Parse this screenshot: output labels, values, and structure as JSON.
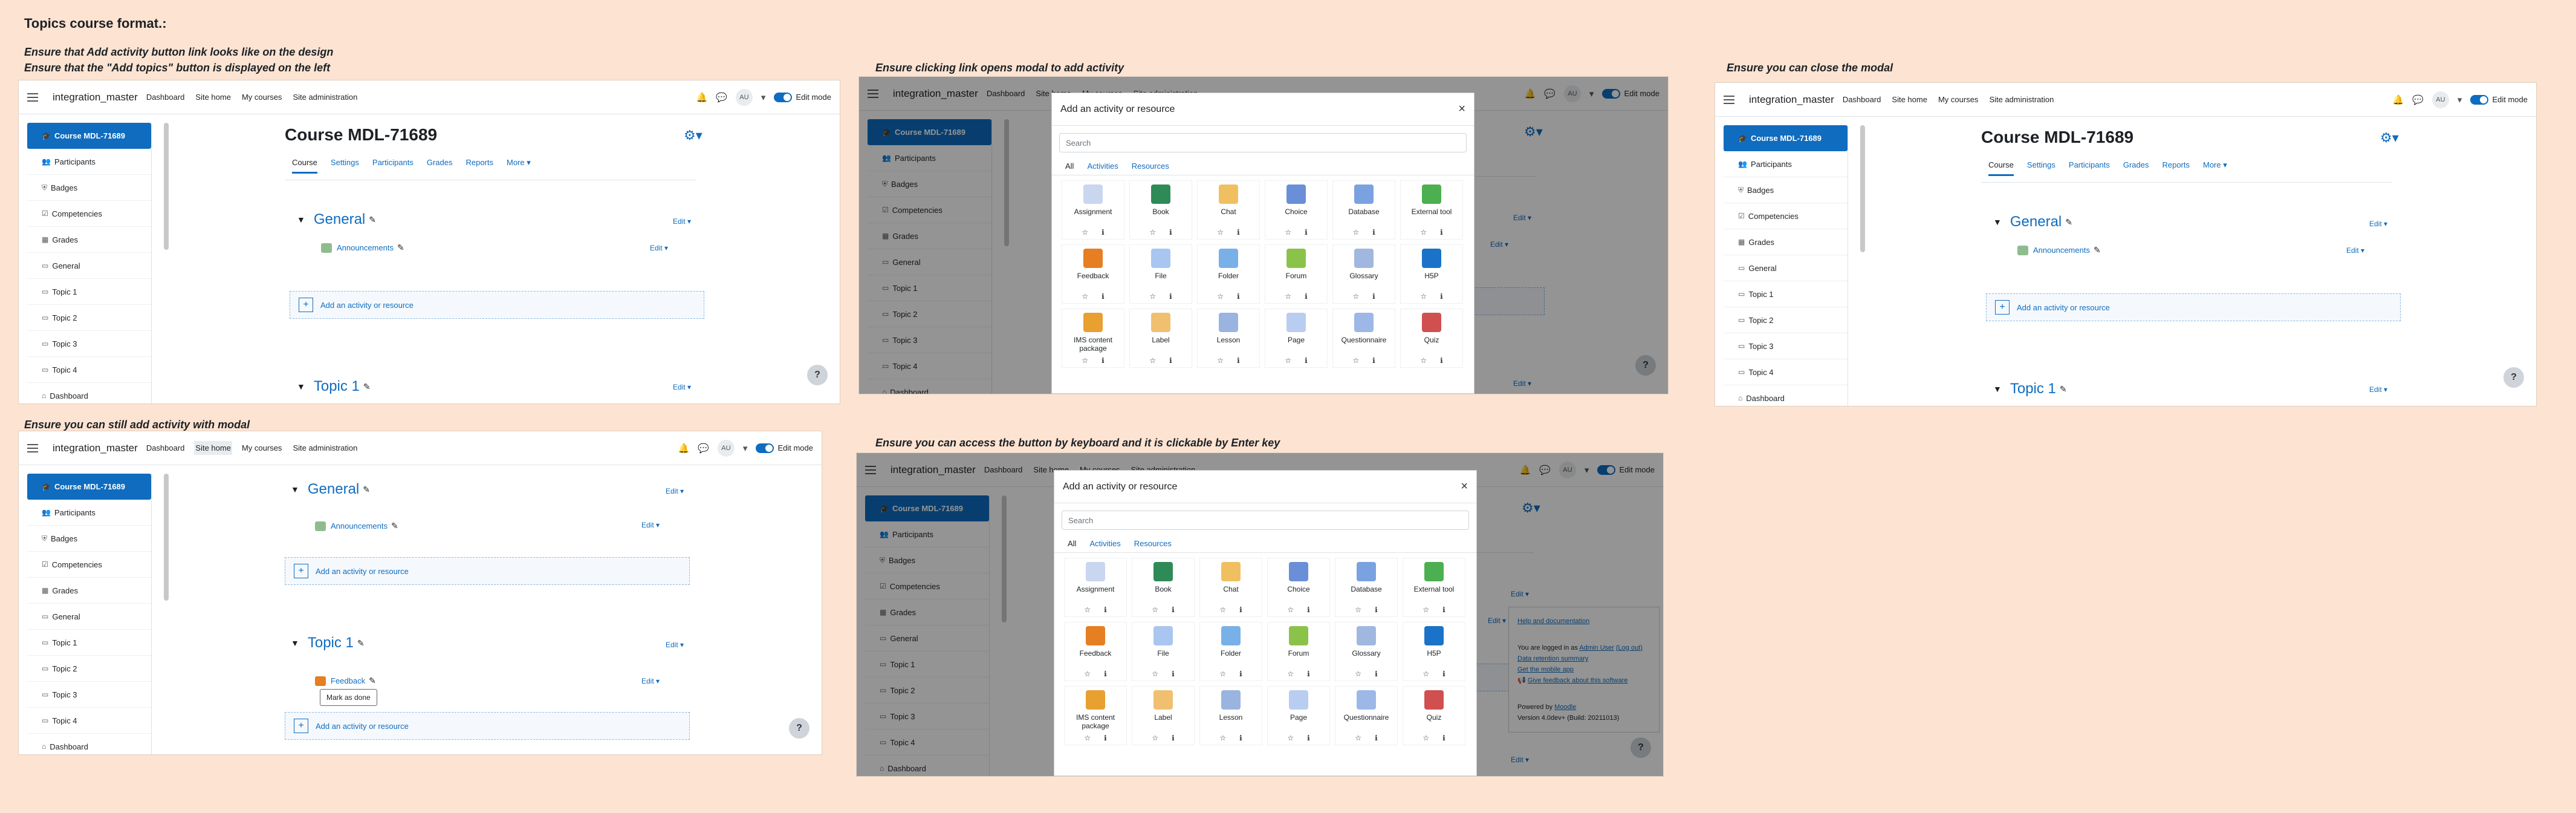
{
  "page_title": "Topics course format.:",
  "captions": {
    "c1a": "Ensure that Add activity button link looks like on the design",
    "c1b": "Ensure that the \"Add topics\" button is displayed on the left",
    "c2": "Ensure clicking link opens modal to add activity",
    "c3": "Ensure you can close the modal",
    "c4": "Ensure you can still add activity with modal",
    "c5": "Ensure you can access the button by keyboard and it is clickable by Enter key"
  },
  "nav": {
    "site": "integration_master",
    "links": [
      "Dashboard",
      "Site home",
      "My courses",
      "Site administration"
    ],
    "avatar": "AU",
    "edit_mode": "Edit mode"
  },
  "drawer": {
    "items": [
      "Course MDL-71689",
      "Participants",
      "Badges",
      "Competencies",
      "Grades",
      "General",
      "Topic 1",
      "Topic 2",
      "Topic 3",
      "Topic 4",
      "Dashboard"
    ]
  },
  "course": {
    "title": "Course MDL-71689",
    "tabs": [
      "Course",
      "Settings",
      "Participants",
      "Grades",
      "Reports",
      "More ▾"
    ],
    "general": "General",
    "topic1": "Topic 1",
    "announcements": "Announcements",
    "feedback": "Feedback",
    "edit": "Edit ▾",
    "edit_item": "Edit ▾",
    "add_activity": "Add an activity or resource",
    "mark_as_done": "Mark as done",
    "help": "?"
  },
  "modal": {
    "title": "Add an activity or resource",
    "close": "×",
    "search_placeholder": "Search",
    "tabs": [
      "All",
      "Activities",
      "Resources"
    ],
    "items": [
      {
        "name": "Assignment",
        "color": "#c9d6f0"
      },
      {
        "name": "Book",
        "color": "#2e8b57"
      },
      {
        "name": "Chat",
        "color": "#f0c060"
      },
      {
        "name": "Choice",
        "color": "#6a8fd8"
      },
      {
        "name": "Database",
        "color": "#7aa2e0"
      },
      {
        "name": "External tool",
        "color": "#4caf50"
      },
      {
        "name": "Feedback",
        "color": "#e67e22"
      },
      {
        "name": "File",
        "color": "#a8c6f0"
      },
      {
        "name": "Folder",
        "color": "#7ab0e8"
      },
      {
        "name": "Forum",
        "color": "#8bc34a"
      },
      {
        "name": "Glossary",
        "color": "#a0b8e0"
      },
      {
        "name": "H5P",
        "color": "#1a73c8"
      },
      {
        "name": "IMS content package",
        "color": "#e8a030"
      },
      {
        "name": "Label",
        "color": "#f0c070"
      },
      {
        "name": "Lesson",
        "color": "#9ab4e0"
      },
      {
        "name": "Page",
        "color": "#b8cdf0"
      },
      {
        "name": "Questionnaire",
        "color": "#9db8e6"
      },
      {
        "name": "Quiz",
        "color": "#d05050"
      }
    ]
  },
  "footer": {
    "help": "Help and documentation",
    "logged_in": "You are logged in as",
    "user": "Admin User",
    "logout": "(Log out)",
    "retention": "Data retention summary",
    "mobile": "Get the mobile app",
    "feedback": "Give feedback about this software",
    "powered": "Powered by",
    "moodle": "Moodle",
    "version": "Version 4.0dev+ (Build: 20211013)"
  }
}
